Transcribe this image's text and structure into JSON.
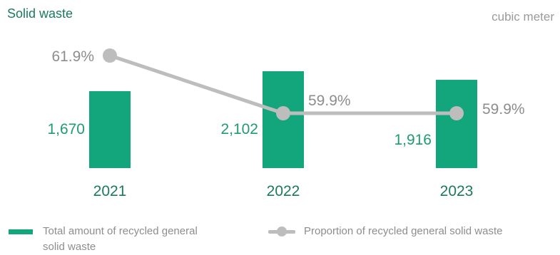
{
  "header": {
    "title": "Solid waste",
    "unit": "cubic meter"
  },
  "legend": {
    "bar_label": "Total amount of recycled general solid waste",
    "line_label": "Proportion of recycled general solid waste"
  },
  "colors": {
    "bar": "#13a57c",
    "bar_label": "#1f9a73",
    "line": "#bdbdbd",
    "line_label": "#8d8d8d",
    "axis_label": "#1a7a5e"
  },
  "chart_data": {
    "type": "bar",
    "title": "Solid waste",
    "ylabel": "cubic meter",
    "categories": [
      "2021",
      "2022",
      "2023"
    ],
    "series": [
      {
        "name": "Total amount of recycled general solid waste",
        "type": "bar",
        "values": [
          1670,
          2102,
          1916
        ],
        "labels": [
          "1,670",
          "2,102",
          "1,916"
        ]
      },
      {
        "name": "Proportion of recycled general solid waste",
        "type": "line",
        "values": [
          61.9,
          59.9,
          59.9
        ],
        "labels": [
          "61.9%",
          "59.9%",
          "59.9%"
        ]
      }
    ],
    "legend_position": "bottom",
    "grid": false
  }
}
